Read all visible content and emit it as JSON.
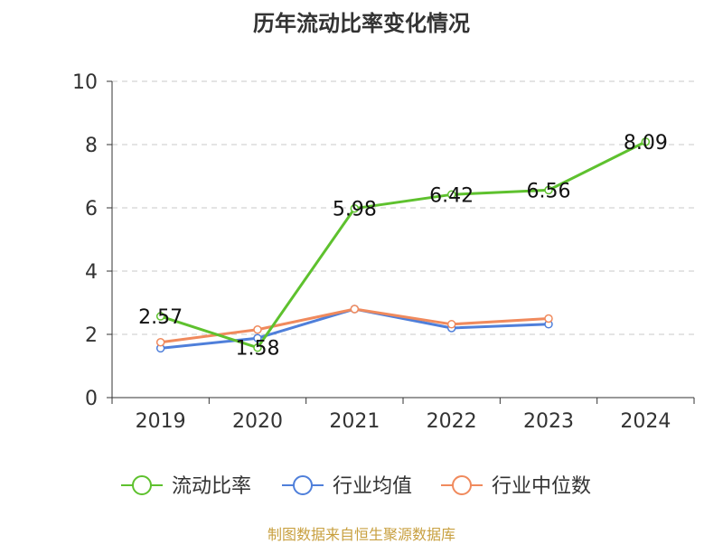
{
  "title": "历年流动比率变化情况",
  "source": "制图数据来自恒生聚源数据库",
  "colors": {
    "grid": "#c8c8c8",
    "axis": "#333333"
  },
  "chart_data": {
    "type": "line",
    "categories": [
      "2019",
      "2020",
      "2021",
      "2022",
      "2023",
      "2024"
    ],
    "ylim": [
      0,
      10
    ],
    "yticks": [
      0,
      2,
      4,
      6,
      8,
      10
    ],
    "grid": "horizontal dashed",
    "legend_position": "bottom",
    "series": [
      {
        "name": "流动比率",
        "color": "#5ec12e",
        "values": [
          2.57,
          1.58,
          5.98,
          6.42,
          6.56,
          8.09
        ],
        "labels": [
          "2.57",
          "1.58",
          "5.98",
          "6.42",
          "6.56",
          "8.09"
        ]
      },
      {
        "name": "行业均值",
        "color": "#4f7fda",
        "values": [
          1.56,
          1.88,
          2.8,
          2.2,
          2.32,
          null
        ]
      },
      {
        "name": "行业中位数",
        "color": "#f08a5d",
        "values": [
          1.75,
          2.15,
          2.8,
          2.32,
          2.5,
          null
        ]
      }
    ]
  }
}
